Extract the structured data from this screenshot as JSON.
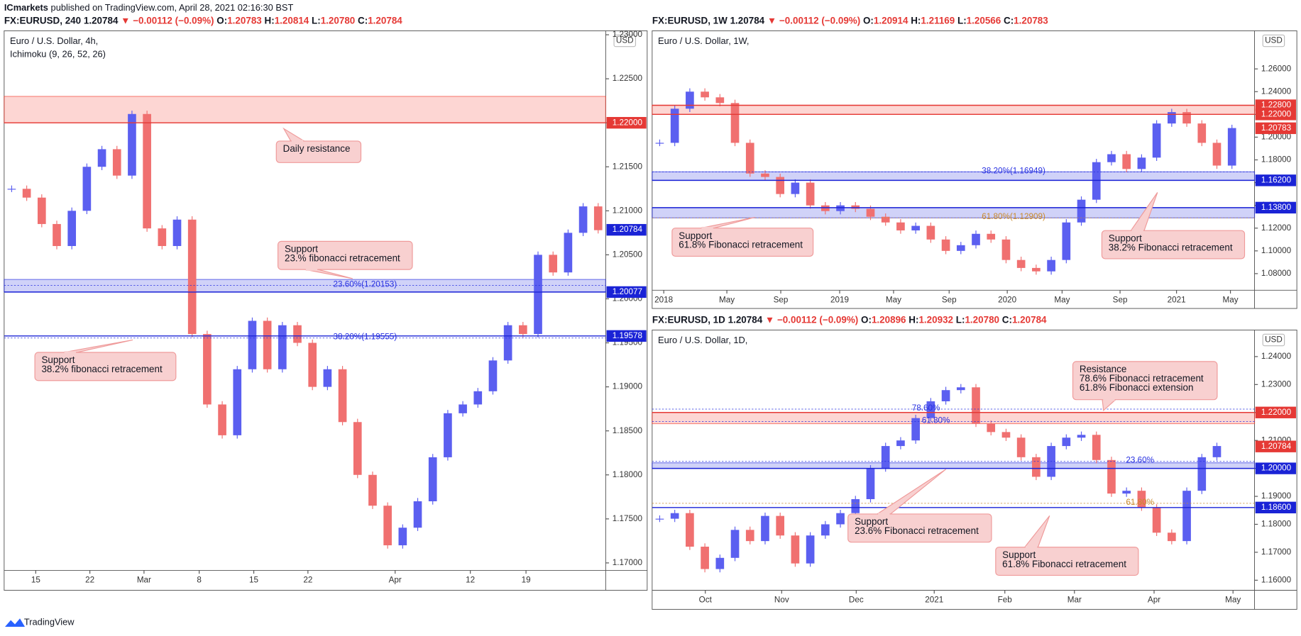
{
  "header": {
    "publisher": "ICmarkets",
    "published": "published on TradingView.com, April 28, 2021 02:16:30 BST"
  },
  "footer": {
    "brand": "TradingView"
  },
  "chart_data": [
    {
      "type": "candlestick",
      "symbol": "FX:EURUSD, 240",
      "last": "1.20784",
      "change": "▼ −0.00112 (−0.09%)",
      "ohlc": [
        {
          "label": "O:",
          "value": "1.20783"
        },
        {
          "label": "H:",
          "value": "1.20814"
        },
        {
          "label": "L:",
          "value": "1.20780"
        },
        {
          "label": "C:",
          "value": "1.20784"
        }
      ],
      "title": "Euro / U.S. Dollar, 4h,",
      "indicator": "Ichimoku (9, 26, 52, 26)",
      "currency": "USD",
      "up_color": "#5b5ff0",
      "down_color": "#f07070",
      "values": [
        1.2125,
        1.2115,
        1.2085,
        1.206,
        1.21,
        1.215,
        1.217,
        1.214,
        1.221,
        1.208,
        1.206,
        1.209,
        1.196,
        1.188,
        1.1845,
        1.192,
        1.1975,
        1.192,
        1.197,
        1.195,
        1.19,
        1.192,
        1.186,
        1.18,
        1.1765,
        1.172,
        1.174,
        1.177,
        1.182,
        1.187,
        1.188,
        1.1895,
        1.193,
        1.197,
        1.196,
        1.205,
        1.203,
        1.2075,
        1.2105,
        1.2078
      ],
      "xlim": [
        0,
        40
      ],
      "xticks": [
        {
          "value": 2.1,
          "label": "15"
        },
        {
          "value": 5.7,
          "label": "22"
        },
        {
          "value": 9.3,
          "label": "Mar"
        },
        {
          "value": 12.97,
          "label": "8"
        },
        {
          "value": 16.6,
          "label": "15"
        },
        {
          "value": 20.2,
          "label": "22"
        },
        {
          "value": 26.0,
          "label": "Apr"
        },
        {
          "value": 31.0,
          "label": "12"
        },
        {
          "value": 34.7,
          "label": "19"
        }
      ],
      "ylim": [
        1.16915,
        1.23045
      ],
      "yticks": [
        {
          "value": 1.17,
          "label": "1.17000"
        },
        {
          "value": 1.175,
          "label": "1.17500"
        },
        {
          "value": 1.18,
          "label": "1.18000"
        },
        {
          "value": 1.185,
          "label": "1.18500"
        },
        {
          "value": 1.19,
          "label": "1.19000"
        },
        {
          "value": 1.195,
          "label": "1.19500"
        },
        {
          "value": 1.2,
          "label": "1.20000"
        },
        {
          "value": 1.205,
          "label": "1.20500"
        },
        {
          "value": 1.21,
          "label": "1.21000"
        },
        {
          "value": 1.215,
          "label": "1.21500"
        },
        {
          "value": 1.22,
          "label": "1.22000"
        },
        {
          "value": 1.225,
          "label": "1.22500"
        },
        {
          "value": 1.23,
          "label": "1.23000"
        }
      ],
      "zones": [
        {
          "from": 1.22,
          "to": 1.223,
          "color": "#f44336"
        },
        {
          "from": 1.2008,
          "to": 1.2022,
          "color": "#2932e1"
        }
      ],
      "levels": [
        {
          "value": 1.22,
          "label": "1.22000",
          "color": "#e53935"
        },
        {
          "value": 1.20077,
          "label": "1.20077",
          "color": "#1a23d6"
        },
        {
          "value": 1.19578,
          "label": "1.19578",
          "color": "#1a23d6"
        }
      ],
      "last_price": {
        "value": 1.20784,
        "label": "1.20784",
        "color": "#1a23d6"
      },
      "fib_labels": [
        {
          "value": 1.20153,
          "label": "23.60%(1.20153)",
          "color": "#2932e1"
        },
        {
          "value": 1.19555,
          "label": "38.20%(1.19555)",
          "color": "#2932e1"
        }
      ],
      "annotations": [
        {
          "lines": [
            "Daily resistance"
          ]
        },
        {
          "lines": [
            "Support",
            "23.% fibonacci retracement"
          ]
        },
        {
          "lines": [
            "Support",
            "38.2% fibonacci retracement"
          ]
        }
      ]
    },
    {
      "type": "candlestick",
      "symbol": "FX:EURUSD, 1W",
      "last": "1.20784",
      "change": "▼ −0.00112 (−0.09%)",
      "ohlc": [
        {
          "label": "O:",
          "value": "1.20914"
        },
        {
          "label": "H:",
          "value": "1.21169"
        },
        {
          "label": "L:",
          "value": "1.20566"
        },
        {
          "label": "C:",
          "value": "1.20783"
        }
      ],
      "title": "Euro / U.S. Dollar, 1W,",
      "currency": "USD",
      "up_color": "#5b5ff0",
      "down_color": "#f07070",
      "values": [
        1.195,
        1.225,
        1.24,
        1.235,
        1.23,
        1.195,
        1.168,
        1.165,
        1.15,
        1.16,
        1.14,
        1.135,
        1.14,
        1.137,
        1.13,
        1.125,
        1.118,
        1.122,
        1.11,
        1.1,
        1.105,
        1.115,
        1.11,
        1.092,
        1.085,
        1.082,
        1.092,
        1.125,
        1.145,
        1.178,
        1.185,
        1.172,
        1.182,
        1.212,
        1.222,
        1.212,
        1.195,
        1.175,
        1.208
      ],
      "xlim": [
        0,
        40
      ],
      "xticks": [
        {
          "value": 0.77,
          "label": "2018"
        },
        {
          "value": 4.96,
          "label": "May"
        },
        {
          "value": 8.54,
          "label": "Sep"
        },
        {
          "value": 12.45,
          "label": "2019"
        },
        {
          "value": 16.03,
          "label": "May"
        },
        {
          "value": 19.72,
          "label": "Sep"
        },
        {
          "value": 23.58,
          "label": "2020"
        },
        {
          "value": 27.22,
          "label": "May"
        },
        {
          "value": 31.07,
          "label": "Sep"
        },
        {
          "value": 34.82,
          "label": "2021"
        },
        {
          "value": 38.4,
          "label": "May"
        }
      ],
      "ylim": [
        1.0654,
        1.2935
      ],
      "yticks": [
        {
          "value": 1.08,
          "label": "1.08000"
        },
        {
          "value": 1.1,
          "label": "1.10000"
        },
        {
          "value": 1.12,
          "label": "1.12000"
        },
        {
          "value": 1.14,
          "label": "1.14000"
        },
        {
          "value": 1.16,
          "label": "1.16000"
        },
        {
          "value": 1.18,
          "label": "1.18000"
        },
        {
          "value": 1.2,
          "label": "1.20000"
        },
        {
          "value": 1.22,
          "label": "1.22000"
        },
        {
          "value": 1.24,
          "label": "1.24000"
        },
        {
          "value": 1.26,
          "label": "1.26000"
        }
      ],
      "zones": [
        {
          "from": 1.22,
          "to": 1.228,
          "color": "#f44336"
        },
        {
          "from": 1.162,
          "to": 1.1695,
          "color": "#2932e1"
        },
        {
          "from": 1.129,
          "to": 1.138,
          "color": "#2932e1"
        }
      ],
      "levels": [
        {
          "value": 1.228,
          "label": "1.22800",
          "color": "#e53935"
        },
        {
          "value": 1.22,
          "label": "1.22000",
          "color": "#e53935"
        },
        {
          "value": 1.162,
          "label": "1.16200",
          "color": "#1a23d6"
        },
        {
          "value": 1.138,
          "label": "1.13800",
          "color": "#1a23d6"
        }
      ],
      "last_price": {
        "value": 1.20783,
        "label": "1.20783",
        "color": "#e53935"
      },
      "fib_labels": [
        {
          "value": 1.16949,
          "label": "38.20%(1.16949)",
          "color": "#2932e1"
        },
        {
          "value": 1.12909,
          "label": "61.80%(1.12909)",
          "color": "#c98a2c"
        }
      ],
      "annotations": [
        {
          "lines": [
            "Support",
            "61.8% Fibonacci retracement"
          ]
        },
        {
          "lines": [
            "Support",
            "38.2% Fibonacci retracement"
          ]
        }
      ]
    },
    {
      "type": "candlestick",
      "symbol": "FX:EURUSD, 1D",
      "last": "1.20784",
      "change": "▼ −0.00112 (−0.09%)",
      "ohlc": [
        {
          "label": "O:",
          "value": "1.20896"
        },
        {
          "label": "H:",
          "value": "1.20932"
        },
        {
          "label": "L:",
          "value": "1.20780"
        },
        {
          "label": "C:",
          "value": "1.20784"
        }
      ],
      "title": "Euro / U.S. Dollar, 1D,",
      "currency": "USD",
      "up_color": "#5b5ff0",
      "down_color": "#f07070",
      "values": [
        1.182,
        1.184,
        1.172,
        1.164,
        1.168,
        1.178,
        1.174,
        1.183,
        1.176,
        1.166,
        1.176,
        1.18,
        1.184,
        1.189,
        1.2,
        1.208,
        1.21,
        1.218,
        1.224,
        1.228,
        1.229,
        1.216,
        1.213,
        1.211,
        1.204,
        1.197,
        1.208,
        1.211,
        1.212,
        1.203,
        1.191,
        1.192,
        1.186,
        1.177,
        1.174,
        1.192,
        1.204,
        1.208
      ],
      "xlim": [
        0,
        40
      ],
      "xticks": [
        {
          "value": 3.53,
          "label": "Oct"
        },
        {
          "value": 8.6,
          "label": "Nov"
        },
        {
          "value": 13.55,
          "label": "Dec"
        },
        {
          "value": 18.73,
          "label": "2021"
        },
        {
          "value": 23.42,
          "label": "Feb"
        },
        {
          "value": 28.04,
          "label": "Mar"
        },
        {
          "value": 33.33,
          "label": "Apr"
        },
        {
          "value": 38.57,
          "label": "May"
        }
      ],
      "ylim": [
        1.1564,
        1.2495
      ],
      "yticks": [
        {
          "value": 1.16,
          "label": "1.16000"
        },
        {
          "value": 1.17,
          "label": "1.17000"
        },
        {
          "value": 1.18,
          "label": "1.18000"
        },
        {
          "value": 1.19,
          "label": "1.19000"
        },
        {
          "value": 1.2,
          "label": "1.20000"
        },
        {
          "value": 1.21,
          "label": "1.21000"
        },
        {
          "value": 1.22,
          "label": "1.22000"
        },
        {
          "value": 1.23,
          "label": "1.23000"
        },
        {
          "value": 1.24,
          "label": "1.24000"
        }
      ],
      "zones": [
        {
          "from": 1.216,
          "to": 1.22,
          "color": "#f44336"
        },
        {
          "from": 1.2,
          "to": 1.202,
          "color": "#2932e1"
        }
      ],
      "levels": [
        {
          "value": 1.22,
          "label": "1.22000",
          "color": "#e53935"
        },
        {
          "value": 1.2,
          "label": "1.20000",
          "color": "#1a23d6"
        },
        {
          "value": 1.186,
          "label": "1.18600",
          "color": "#1a23d6"
        }
      ],
      "last_price": {
        "value": 1.20784,
        "label": "1.20784",
        "color": "#e53935"
      },
      "fib_labels": [
        {
          "value": 1.2212,
          "label": "78.60%",
          "color": "#2932e1"
        },
        {
          "value": 1.2168,
          "label": "61.80%",
          "color": "#2932e1"
        },
        {
          "value": 1.2025,
          "label": "23.60%",
          "color": "#2932e1"
        },
        {
          "value": 1.1875,
          "label": "61.80%",
          "color": "#c98a2c"
        }
      ],
      "annotations": [
        {
          "lines": [
            "Resistance",
            "78.6% Fibonacci retracement",
            "61.8% Fibonacci extension"
          ]
        },
        {
          "lines": [
            "Support",
            "23.6% Fibonacci retracement"
          ]
        },
        {
          "lines": [
            "Support",
            "61.8% Fibonacci retracement"
          ]
        }
      ]
    }
  ]
}
